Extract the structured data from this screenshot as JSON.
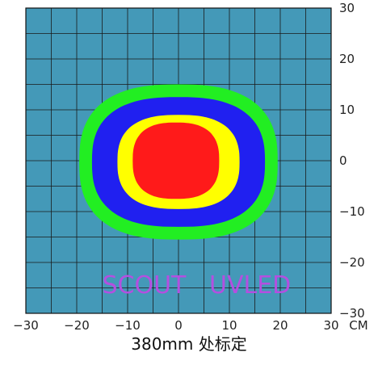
{
  "chart_data": {
    "type": "heatmap",
    "title": "",
    "xlabel": "",
    "ylabel": "",
    "x_unit": "CM",
    "xlim": [
      -30,
      30
    ],
    "ylim": [
      -30,
      30
    ],
    "x_ticks": [
      -30,
      -20,
      -10,
      0,
      10,
      20,
      30
    ],
    "y_ticks": [
      -30,
      -20,
      -10,
      0,
      10,
      20,
      30
    ],
    "grid": true,
    "grid_step": 5,
    "background_color": "#4499b8",
    "grid_color": "#1a1a1a",
    "contours": [
      {
        "level": 1,
        "color": "#22ee22",
        "x_extent": [
          -19.5,
          19.5
        ],
        "y_extent": [
          -15.5,
          15
        ]
      },
      {
        "level": 2,
        "color": "#2020f0",
        "x_extent": [
          -17,
          17
        ],
        "y_extent": [
          -13,
          12.5
        ]
      },
      {
        "level": 3,
        "color": "#ffff00",
        "x_extent": [
          -12,
          12
        ],
        "y_extent": [
          -9.5,
          9
        ]
      },
      {
        "level": 4,
        "color": "#ff1a1a",
        "x_extent": [
          -9,
          8
        ],
        "y_extent": [
          -7.5,
          7.5
        ]
      }
    ],
    "annotations": [
      {
        "text": "SCOUT   UVLED",
        "x": -15,
        "y": -26
      }
    ],
    "caption": "380mm 处标定"
  }
}
